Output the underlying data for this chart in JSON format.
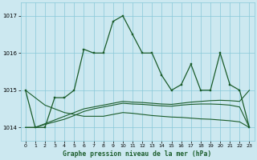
{
  "background_color": "#cce8f0",
  "grid_color": "#88c8d8",
  "line_color": "#1a5c2a",
  "xlabel": "Graphe pression niveau de la mer (hPa)",
  "ylim": [
    1013.65,
    1017.35
  ],
  "xlim": [
    -0.5,
    23.5
  ],
  "yticks": [
    1014,
    1015,
    1016,
    1017
  ],
  "xticks": [
    0,
    1,
    2,
    3,
    4,
    5,
    6,
    7,
    8,
    9,
    10,
    11,
    12,
    13,
    14,
    15,
    16,
    17,
    18,
    19,
    20,
    21,
    22,
    23
  ],
  "s1": [
    1015.0,
    1014.0,
    1014.0,
    1014.8,
    1014.8,
    1015.0,
    1016.1,
    1016.0,
    1016.0,
    1016.85,
    1017.0,
    1016.5,
    1016.0,
    1016.0,
    1015.4,
    1015.0,
    1015.15,
    1015.7,
    1015.0,
    1015.0,
    1016.0,
    1015.15,
    1015.0,
    1014.0
  ],
  "s2": [
    1015.0,
    1014.8,
    1014.6,
    1014.5,
    1014.4,
    1014.35,
    1014.3,
    1014.3,
    1014.3,
    1014.35,
    1014.4,
    1014.38,
    1014.35,
    1014.32,
    1014.3,
    1014.28,
    1014.27,
    1014.25,
    1014.23,
    1014.22,
    1014.2,
    1014.18,
    1014.15,
    1014.0
  ],
  "s3": [
    1014.0,
    1014.0,
    1014.1,
    1014.2,
    1014.3,
    1014.4,
    1014.5,
    1014.55,
    1014.6,
    1014.65,
    1014.7,
    1014.68,
    1014.67,
    1014.65,
    1014.63,
    1014.62,
    1014.65,
    1014.68,
    1014.7,
    1014.72,
    1014.73,
    1014.72,
    1014.7,
    1015.0
  ],
  "s4": [
    1014.0,
    1014.0,
    1014.08,
    1014.15,
    1014.22,
    1014.32,
    1014.43,
    1014.5,
    1014.55,
    1014.6,
    1014.65,
    1014.63,
    1014.62,
    1014.6,
    1014.58,
    1014.57,
    1014.6,
    1014.62,
    1014.63,
    1014.63,
    1014.62,
    1014.6,
    1014.55,
    1014.0
  ]
}
